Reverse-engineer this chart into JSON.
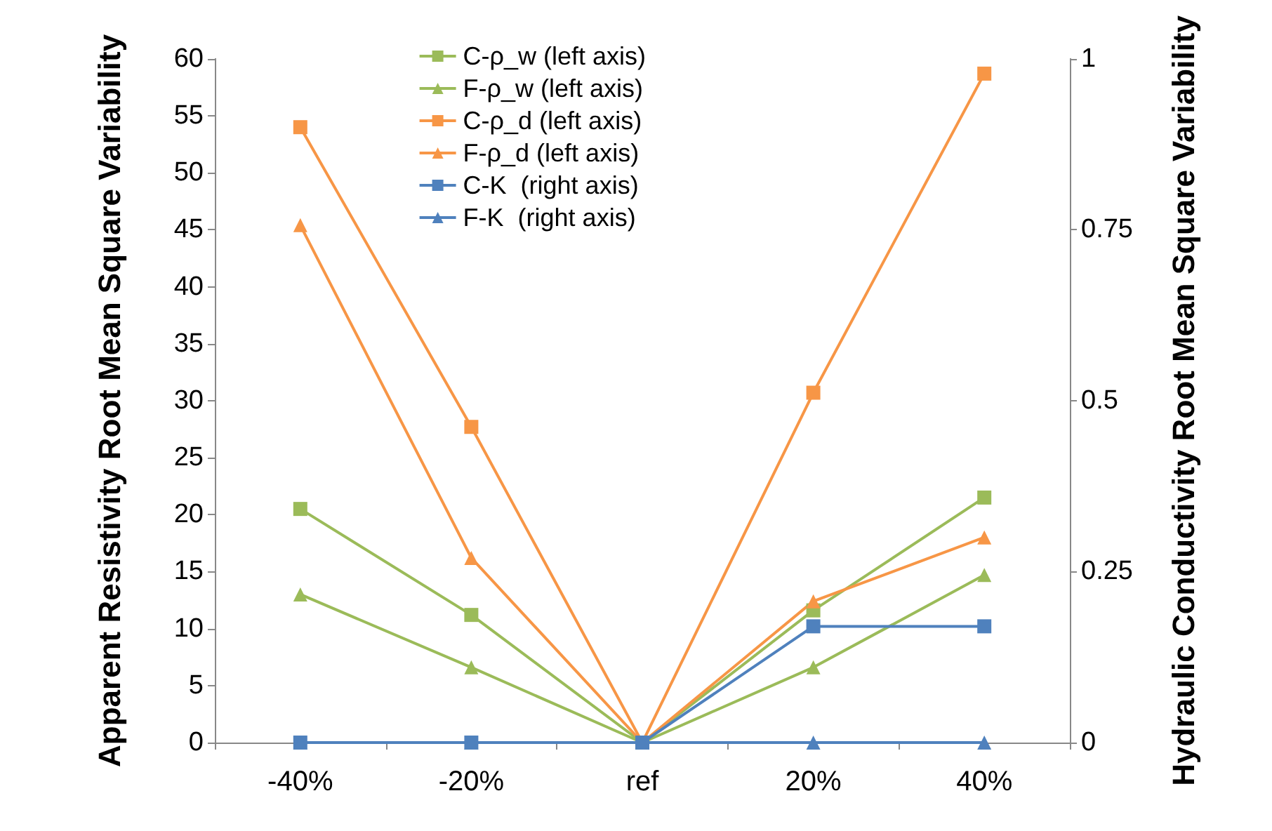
{
  "chart_data": {
    "type": "line",
    "categories": [
      "-40%",
      "-20%",
      "ref",
      "20%",
      "40%"
    ],
    "ylabel": "Apparent Resistivity Root Mean Square Variability",
    "y2label": "Hydraulic Conductivity Root Mean Square Variability",
    "ylim": [
      0,
      60
    ],
    "yticks": [
      0,
      5,
      10,
      15,
      20,
      25,
      30,
      35,
      40,
      45,
      50,
      55,
      60
    ],
    "y2lim": [
      0,
      1
    ],
    "y2ticks": [
      0,
      0.25,
      0.5,
      0.75,
      1
    ],
    "grid": false,
    "legend": "top",
    "series": [
      {
        "name": "C-ρ_w (left axis)",
        "color": "#9bbb59",
        "marker": "square",
        "values": [
          20.5,
          11.2,
          0,
          11.6,
          21.5
        ]
      },
      {
        "name": "F-ρ_w (left axis)",
        "color": "#9bbb59",
        "marker": "triangle",
        "values": [
          13,
          6.6,
          0,
          6.6,
          14.7
        ]
      },
      {
        "name": "C-ρ_d (left axis)",
        "color": "#f79646",
        "marker": "square",
        "values": [
          54,
          27.7,
          0,
          30.7,
          58.7
        ]
      },
      {
        "name": "F-ρ_d (left axis)",
        "color": "#f79646",
        "marker": "triangle",
        "values": [
          45.4,
          16.2,
          0,
          12.4,
          18
        ]
      },
      {
        "name": "C-K  (right axis)",
        "color": "#4f81bd",
        "marker": "square",
        "axis": "y2",
        "values": [
          0,
          0,
          0,
          0.17,
          0.17
        ]
      },
      {
        "name": "F-K  (right axis)",
        "color": "#4f81bd",
        "marker": "triangle",
        "axis": "y2",
        "values": [
          0,
          0,
          0,
          0,
          0
        ]
      }
    ]
  }
}
